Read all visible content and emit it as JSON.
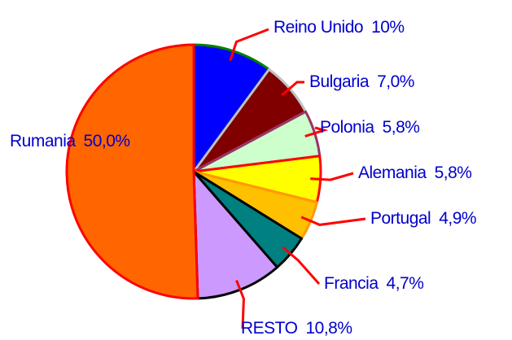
{
  "chart_data": {
    "type": "pie",
    "categories": [
      "Reino Unido",
      "Bulgaria",
      "Polonia",
      "Alemania",
      "Portugal",
      "Francia",
      "RESTO",
      "Rumania"
    ],
    "values": [
      10,
      7.0,
      5.8,
      5.8,
      4.9,
      4.7,
      10.8,
      50.0
    ],
    "value_labels": [
      "10%",
      "7,0%",
      "5,8%",
      "5,8%",
      "4,9%",
      "4,7%",
      "10,8%",
      "50,0%"
    ],
    "colors": [
      "#0000ff",
      "#800000",
      "#ccffcc",
      "#ffff00",
      "#ffc000",
      "#008080",
      "#cc99ff",
      "#ff6600"
    ],
    "edge_colors": [
      "#008000",
      "#c0c0c0",
      "#993366",
      "#ff0000",
      "#ff9900",
      "#000000",
      "#000000",
      "#ff0000"
    ]
  }
}
